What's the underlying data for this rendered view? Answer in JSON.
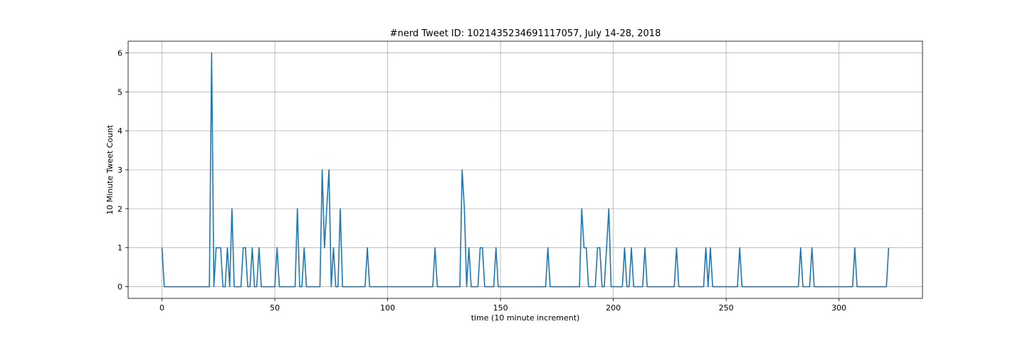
{
  "chart_data": {
    "type": "line",
    "title": "#nerd Tweet ID: 1021435234691117057, July 14-28, 2018",
    "xlabel": "time (10 minute increment)",
    "ylabel": "10 Minute Tweet Count",
    "xlim": [
      -15,
      337
    ],
    "ylim": [
      -0.3,
      6.3
    ],
    "xticks": [
      0,
      50,
      100,
      150,
      200,
      250,
      300
    ],
    "yticks": [
      0,
      1,
      2,
      3,
      4,
      5,
      6
    ],
    "grid": true,
    "color": "#1f77b4",
    "series": [
      {
        "values": [
          1,
          0,
          0,
          0,
          0,
          0,
          0,
          0,
          0,
          0,
          0,
          0,
          0,
          0,
          0,
          0,
          0,
          0,
          0,
          0,
          0,
          0,
          6,
          0,
          1,
          1,
          1,
          0,
          0,
          1,
          0,
          2,
          0,
          0,
          0,
          0,
          1,
          1,
          0,
          0,
          1,
          0,
          0,
          1,
          0,
          0,
          0,
          0,
          0,
          0,
          0,
          1,
          0,
          0,
          0,
          0,
          0,
          0,
          0,
          0,
          2,
          0,
          0,
          1,
          0,
          0,
          0,
          0,
          0,
          0,
          0,
          3,
          1,
          2,
          3,
          0,
          1,
          0,
          0,
          2,
          0,
          0,
          0,
          0,
          0,
          0,
          0,
          0,
          0,
          0,
          0,
          1,
          0,
          0,
          0,
          0,
          0,
          0,
          0,
          0,
          0,
          0,
          0,
          0,
          0,
          0,
          0,
          0,
          0,
          0,
          0,
          0,
          0,
          0,
          0,
          0,
          0,
          0,
          0,
          0,
          0,
          1,
          0,
          0,
          0,
          0,
          0,
          0,
          0,
          0,
          0,
          0,
          0,
          3,
          2,
          0,
          1,
          0,
          0,
          0,
          0,
          1,
          1,
          0,
          0,
          0,
          0,
          0,
          1,
          0,
          0,
          0,
          0,
          0,
          0,
          0,
          0,
          0,
          0,
          0,
          0,
          0,
          0,
          0,
          0,
          0,
          0,
          0,
          0,
          0,
          0,
          1,
          0,
          0,
          0,
          0,
          0,
          0,
          0,
          0,
          0,
          0,
          0,
          0,
          0,
          0,
          2,
          1,
          1,
          0,
          0,
          0,
          0,
          1,
          1,
          0,
          0,
          1,
          2,
          0,
          0,
          0,
          0,
          0,
          0,
          1,
          0,
          0,
          1,
          0,
          0,
          0,
          0,
          0,
          1,
          0,
          0,
          0,
          0,
          0,
          0,
          0,
          0,
          0,
          0,
          0,
          0,
          0,
          1,
          0,
          0,
          0,
          0,
          0,
          0,
          0,
          0,
          0,
          0,
          0,
          0,
          1,
          0,
          1,
          0,
          0,
          0,
          0,
          0,
          0,
          0,
          0,
          0,
          0,
          0,
          0,
          1,
          0,
          0,
          0,
          0,
          0,
          0,
          0,
          0,
          0,
          0,
          0,
          0,
          0,
          0,
          0,
          0,
          0,
          0,
          0,
          0,
          0,
          0,
          0,
          0,
          0,
          0,
          1,
          0,
          0,
          0,
          0,
          1,
          0,
          0,
          0,
          0,
          0,
          0,
          0,
          0,
          0,
          0,
          0,
          0,
          0,
          0,
          0,
          0,
          0,
          0,
          1,
          0,
          0,
          0,
          0,
          0,
          0,
          0,
          0,
          0,
          0,
          0,
          0,
          0,
          0,
          1
        ]
      }
    ]
  }
}
